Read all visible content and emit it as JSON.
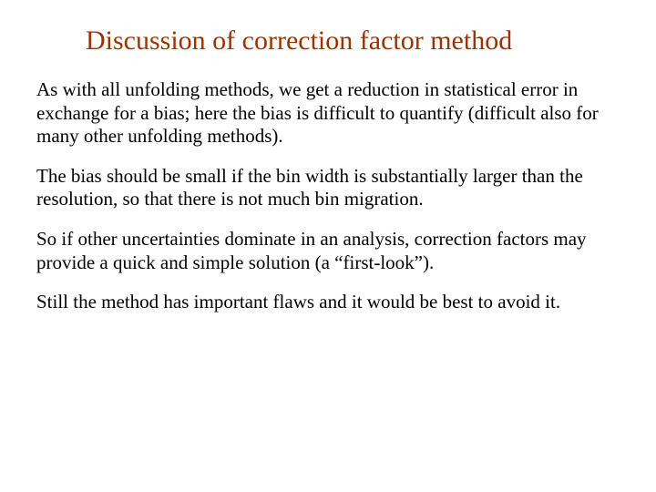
{
  "slide": {
    "title": "Discussion of correction factor method",
    "title_color": "#993300",
    "title_fontsize": 30,
    "body_color": "#000000",
    "body_fontsize": 21,
    "background_color": "#ffffff",
    "paragraphs": [
      "As with all unfolding methods, we get a reduction in statistical error in exchange for a bias; here the bias is difficult to quantify (difficult also for many other unfolding methods).",
      "The bias should be small if the bin width is substantially larger than the resolution, so that there is not much bin migration.",
      "So if other uncertainties dominate in an analysis, correction factors may provide a quick and simple solution (a “first-look”).",
      "Still the method has important flaws and it would be best to avoid it."
    ]
  }
}
